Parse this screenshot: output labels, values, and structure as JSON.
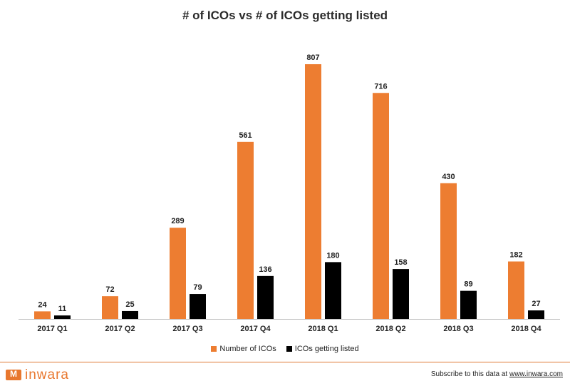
{
  "chart_data": {
    "type": "bar",
    "title": "# of ICOs vs # of ICOs getting listed",
    "categories": [
      "2017 Q1",
      "2017 Q2",
      "2017 Q3",
      "2017 Q4",
      "2018 Q1",
      "2018 Q2",
      "2018 Q3",
      "2018 Q4"
    ],
    "series": [
      {
        "name": "Number of ICOs",
        "color": "#ed7d31",
        "values": [
          24,
          72,
          289,
          561,
          807,
          716,
          430,
          182
        ]
      },
      {
        "name": "ICOs getting listed",
        "color": "#000000",
        "values": [
          11,
          25,
          79,
          136,
          180,
          158,
          89,
          27
        ]
      }
    ],
    "ylim": [
      0,
      807
    ],
    "grid": false,
    "legend_position": "bottom",
    "data_labels": true
  },
  "footer": {
    "brand": "inwara",
    "subscribe_text": "Subscribe to this data at ",
    "subscribe_link": "www.inwara.com"
  }
}
